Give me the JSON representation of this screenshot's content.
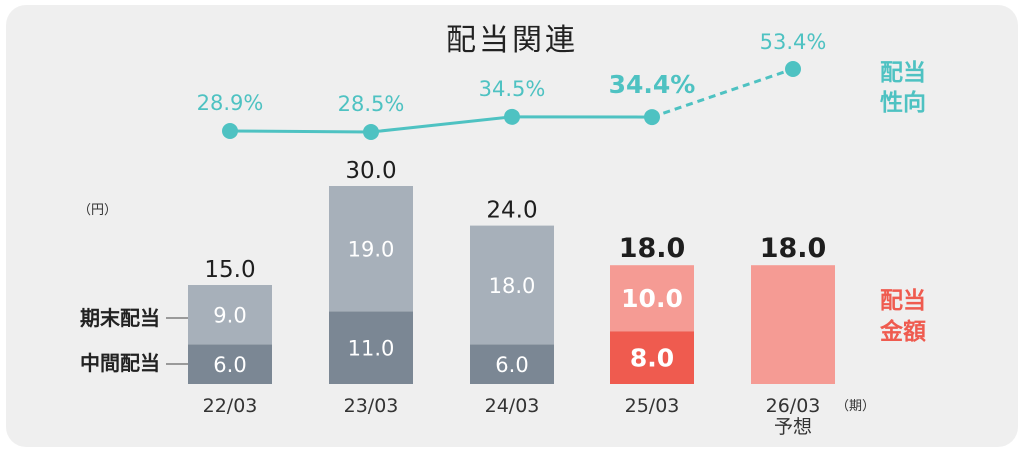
{
  "chart_data": {
    "type": "bar",
    "title": "配当関連",
    "unit": "（円）",
    "period_unit": "（期）",
    "categories": [
      "22/03",
      "23/03",
      "24/03",
      "25/03",
      "26/03"
    ],
    "category_note": [
      "",
      "",
      "",
      "",
      "予想"
    ],
    "series": [
      {
        "name": "中間配当",
        "values": [
          6.0,
          11.0,
          6.0,
          8.0,
          null
        ]
      },
      {
        "name": "期末配当",
        "values": [
          9.0,
          19.0,
          18.0,
          10.0,
          null
        ]
      }
    ],
    "totals": [
      15.0,
      30.0,
      24.0,
      18.0,
      18.0
    ],
    "payout_ratio": {
      "name": "配当性向",
      "values": [
        28.9,
        28.5,
        34.5,
        34.4,
        53.4
      ],
      "labels": [
        "28.9%",
        "28.5%",
        "34.5%",
        "34.4%",
        "53.4%"
      ],
      "forecast_from_index": 3
    },
    "side_labels": {
      "ratio": [
        "配当",
        "性向"
      ],
      "amount": [
        "配当",
        "金額"
      ]
    },
    "ylim": [
      0,
      32
    ],
    "colors": {
      "interim": "#7b8794",
      "year_end": "#a7b0ba",
      "interim_current": "#ef5b4f",
      "year_end_current": "#f59b94",
      "forecast": "#f59b94",
      "ratio_line": "#4ec2c2"
    }
  }
}
